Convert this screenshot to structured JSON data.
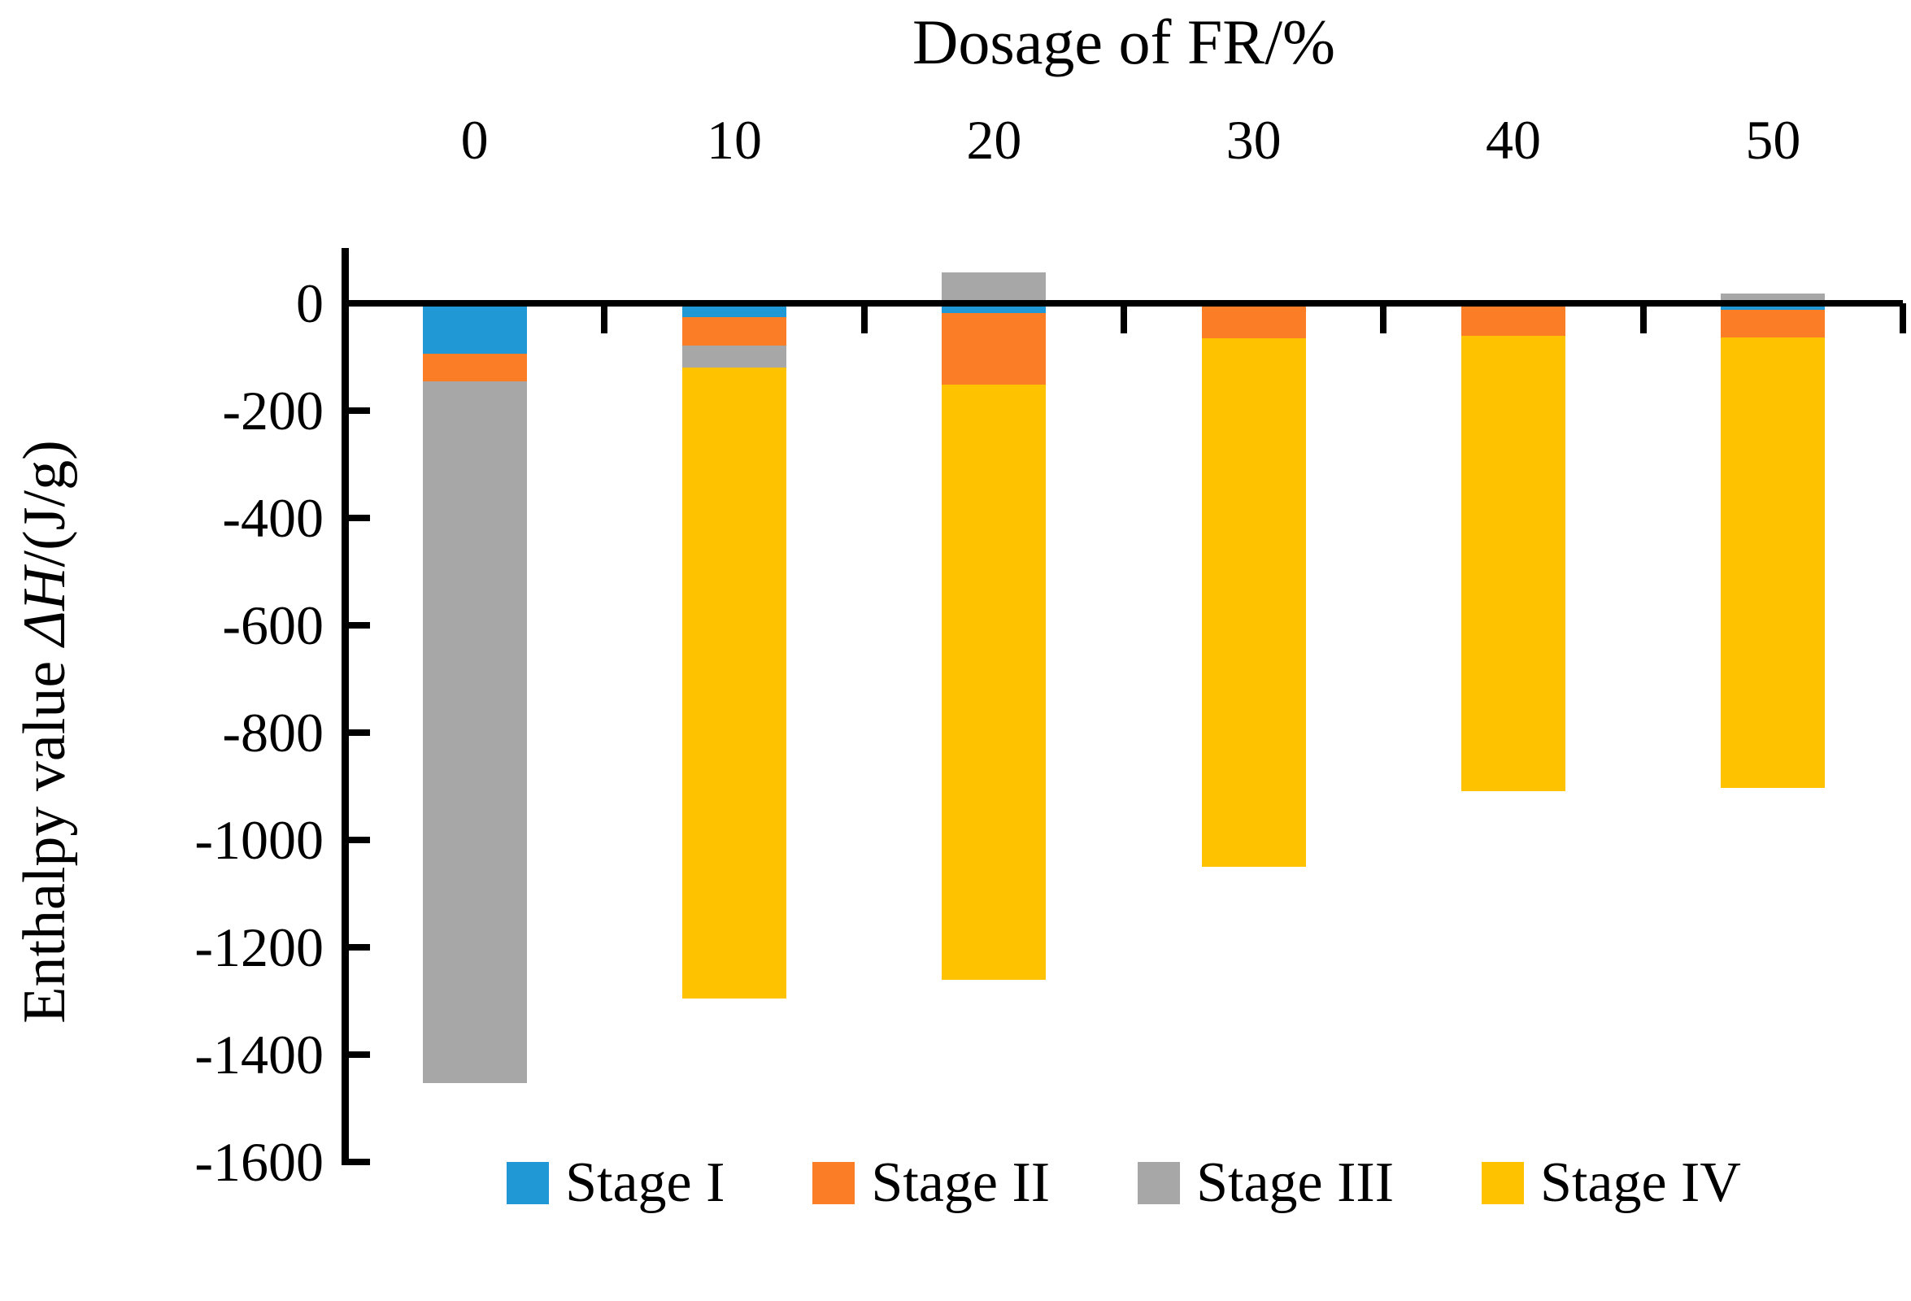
{
  "title": "Dosage of FR/%",
  "y_axis_title": {
    "prefix": "Enthalpy value ",
    "symbol": "ΔH",
    "suffix": "/(J/g)"
  },
  "x_tick_labels": [
    "0",
    "10",
    "20",
    "30",
    "40",
    "50"
  ],
  "y_tick_labels": [
    "0",
    "-200",
    "-400",
    "-600",
    "-800",
    "-1000",
    "-1200",
    "-1400",
    "-1600"
  ],
  "colors": {
    "stage1": "#2098D5",
    "stage2": "#FB7D26",
    "stage3": "#A7A7A7",
    "stage4": "#FFC200",
    "axis": "#000000"
  },
  "chart_data": {
    "type": "bar",
    "stacked": true,
    "title": "Dosage of FR/%",
    "xlabel": "Dosage of FR/%",
    "ylabel": "Enthalpy value ΔH/(J/g)",
    "categories": [
      "0",
      "10",
      "20",
      "30",
      "40",
      "50"
    ],
    "series": [
      {
        "name": "Stage I",
        "color": "#2098D5",
        "values": [
          -94,
          -26,
          -18,
          0,
          0,
          -12
        ]
      },
      {
        "name": "Stage II",
        "color": "#FB7D26",
        "values": [
          -52,
          -53,
          -133,
          -65,
          -60,
          -52
        ]
      },
      {
        "name": "Stage III",
        "color": "#A7A7A7",
        "values": [
          -1307,
          -41,
          57,
          0,
          0,
          18
        ]
      },
      {
        "name": "Stage IV",
        "color": "#FFC200",
        "values": [
          0,
          -1176,
          -1110,
          -985,
          -849,
          -839
        ]
      }
    ],
    "totals_negative": [
      -1453,
      -1296,
      -1261,
      -1050,
      -909,
      -903
    ],
    "ylim": [
      -1600,
      140
    ],
    "ytick_step": 200,
    "grid": false,
    "legend_position": "bottom"
  }
}
